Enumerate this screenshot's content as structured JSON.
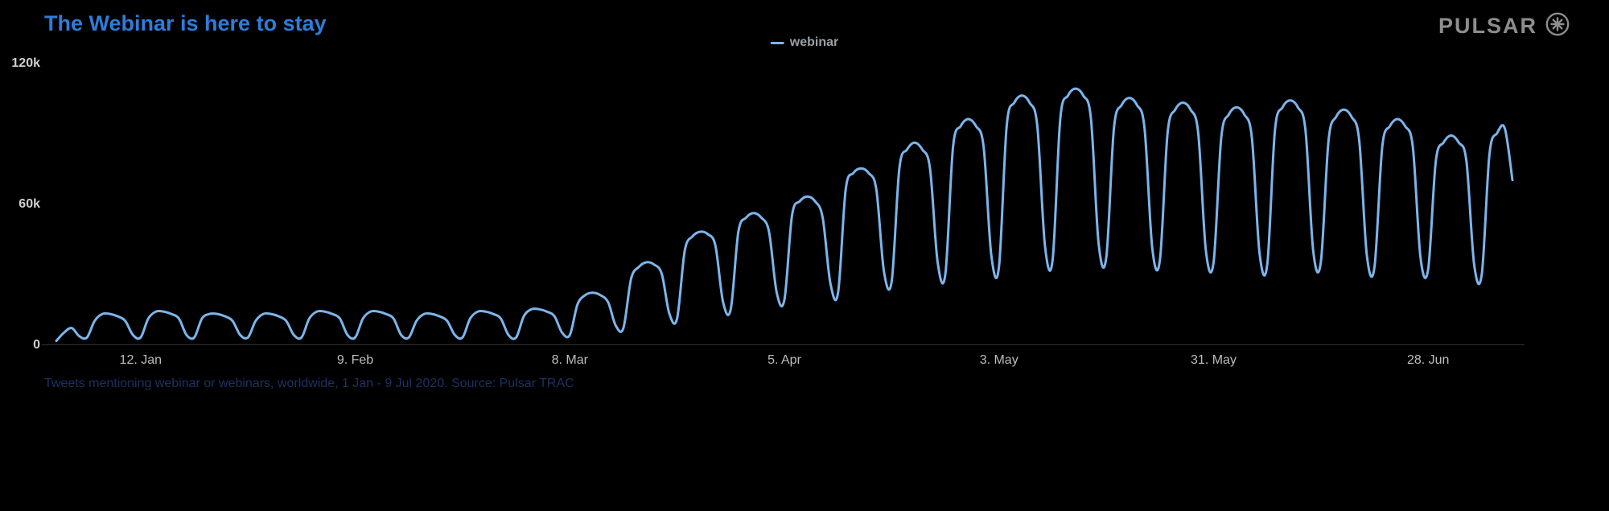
{
  "title": "The Webinar is here to stay",
  "brand": {
    "name": "PULSAR",
    "icon": "pulsar-starburst"
  },
  "legend": {
    "series_label": "webinar"
  },
  "caption": "Tweets mentioning webinar or webinars, worldwide, 1 Jan - 9 Jul 2020. Source: Pulsar TRAC",
  "colors": {
    "background": "#000000",
    "line": "#7cb5ec",
    "title": "#2f7cd9",
    "axis_text": "#c6c6c6",
    "brand": "#8d8d8d",
    "caption": "#1d3161"
  },
  "chart_data": {
    "type": "line",
    "title": "The Webinar is here to stay",
    "xlabel": "",
    "ylabel": "",
    "x_range": [
      "1 Jan 2020",
      "9 Jul 2020"
    ],
    "values_unit": "thousands of mentions per day",
    "ylim": [
      0,
      120
    ],
    "grid": false,
    "legend_position": "top-center",
    "y_ticks": [
      {
        "value": 0,
        "label": "0"
      },
      {
        "value": 60,
        "label": "60k"
      },
      {
        "value": 120,
        "label": "120k"
      }
    ],
    "x_ticks": [
      {
        "day_index": 11,
        "label": "12. Jan"
      },
      {
        "day_index": 39,
        "label": "9. Feb"
      },
      {
        "day_index": 67,
        "label": "8. Mar"
      },
      {
        "day_index": 95,
        "label": "5. Apr"
      },
      {
        "day_index": 123,
        "label": "3. May"
      },
      {
        "day_index": 151,
        "label": "31. May"
      },
      {
        "day_index": 179,
        "label": "28. Jun"
      }
    ],
    "series": [
      {
        "name": "webinar",
        "values": [
          1.5,
          5,
          7,
          3.5,
          3,
          10,
          13,
          13,
          12,
          10,
          4,
          3,
          11,
          14,
          14,
          13,
          11,
          4,
          3,
          11,
          13,
          13,
          12,
          10,
          4,
          3,
          10,
          13,
          13,
          12,
          10,
          4,
          3,
          11,
          14,
          14,
          13,
          11,
          4,
          3,
          11,
          14,
          14,
          13,
          11,
          4,
          3,
          10,
          13,
          13,
          12,
          10,
          4,
          3,
          11,
          14,
          14,
          13,
          11,
          4,
          3,
          12,
          15,
          15,
          14,
          12,
          5,
          4,
          17,
          21,
          22,
          21,
          18,
          8,
          7,
          28,
          33,
          35,
          34,
          30,
          13,
          11,
          40,
          46,
          48,
          47,
          42,
          18,
          15,
          48,
          54,
          56,
          54,
          48,
          22,
          19,
          55,
          61,
          63,
          61,
          54,
          26,
          22,
          66,
          73,
          75,
          73,
          66,
          31,
          27,
          75,
          83,
          86,
          83,
          75,
          35,
          30,
          84,
          93,
          96,
          93,
          84,
          38,
          33,
          93,
          103,
          106,
          103,
          93,
          42,
          36,
          96,
          106,
          109,
          106,
          96,
          43,
          37,
          92,
          102,
          105,
          102,
          92,
          41,
          36,
          90,
          100,
          103,
          100,
          90,
          40,
          35,
          88,
          98,
          101,
          98,
          88,
          39,
          34,
          91,
          101,
          104,
          101,
          91,
          40,
          35,
          87,
          97,
          100,
          97,
          87,
          38,
          33,
          84,
          93,
          96,
          93,
          84,
          37,
          32,
          78,
          86,
          89,
          86,
          78,
          34,
          30,
          81,
          90,
          92,
          70
        ]
      }
    ]
  }
}
